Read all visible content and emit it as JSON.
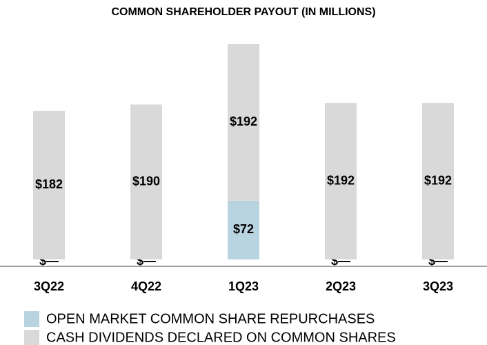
{
  "chart_data": {
    "type": "stacked_bar",
    "title": "COMMON SHAREHOLDER PAYOUT (IN MILLIONS)",
    "categories": [
      "3Q22",
      "4Q22",
      "1Q23",
      "2Q23",
      "3Q23"
    ],
    "series": [
      {
        "name": "OPEN MARKET COMMON SHARE REPURCHASES",
        "color": "#b9d4e1",
        "values": [
          0,
          0,
          72,
          0,
          0
        ],
        "value_labels": [
          "$—",
          "$—",
          "$72",
          "$—",
          "$—"
        ]
      },
      {
        "name": "CASH DIVIDENDS DECLARED ON COMMON SHARES",
        "color": "#d9d9d9",
        "values": [
          182,
          190,
          192,
          192,
          192
        ],
        "value_labels": [
          "$182",
          "$190",
          "$192",
          "$192",
          "$192"
        ]
      }
    ]
  }
}
